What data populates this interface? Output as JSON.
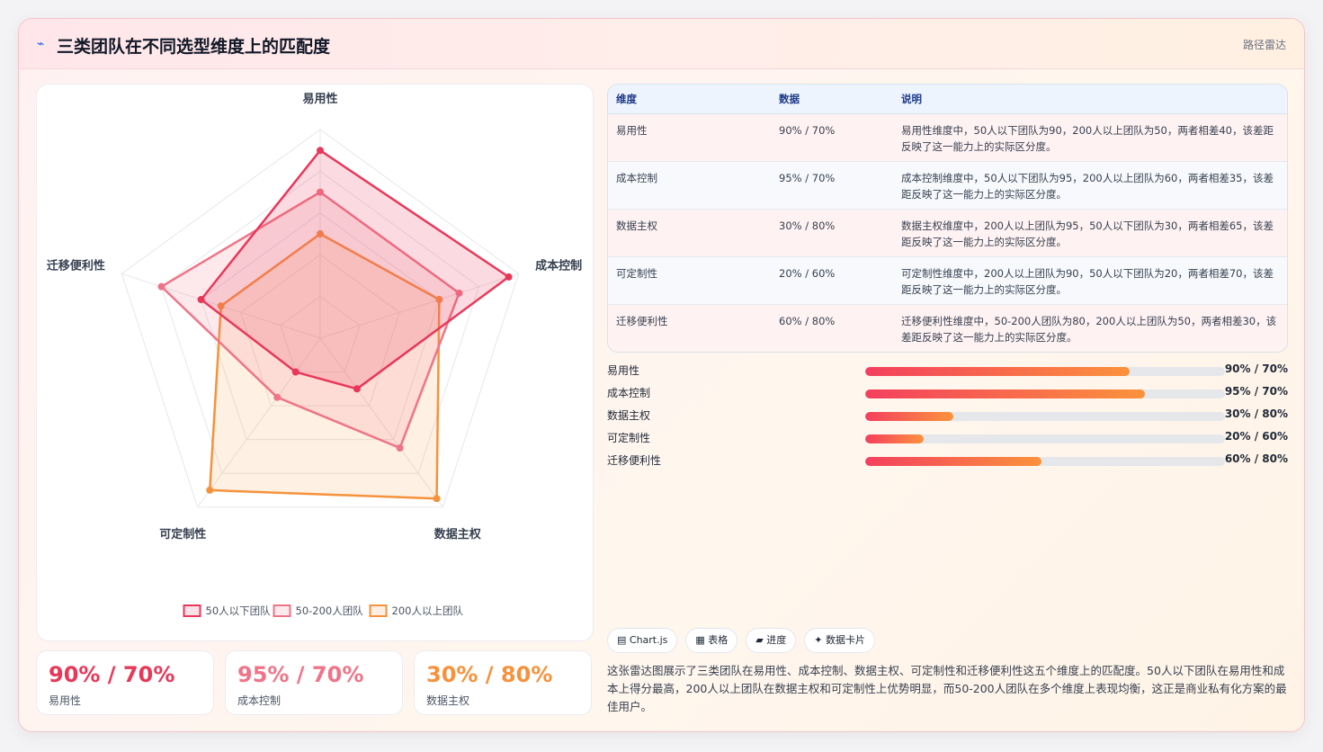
{
  "header": {
    "icon": "sparkle-icon",
    "title": "三类团队在不同选型维度上的匹配度",
    "tag": "路径雷达"
  },
  "chart_data": {
    "type": "radar",
    "axes": [
      "易用性",
      "成本控制",
      "数据主权",
      "可定制性",
      "迁移便利性"
    ],
    "rmax": 100,
    "grid_levels": [
      20,
      40,
      60,
      80,
      100
    ],
    "grid": true,
    "legend_position": "bottom",
    "series": [
      {
        "name": "50人以下团队",
        "values": [
          90,
          95,
          30,
          20,
          60
        ],
        "color": "#e8385a"
      },
      {
        "name": "50-200人团队",
        "values": [
          70,
          70,
          65,
          35,
          80
        ],
        "color": "#f07488"
      },
      {
        "name": "200人以上团队",
        "values": [
          50,
          60,
          95,
          90,
          50
        ],
        "color": "#f6923c"
      }
    ]
  },
  "stats": [
    {
      "value": "90% / 70%",
      "label": "易用性",
      "color": "#e8385a"
    },
    {
      "value": "95% / 70%",
      "label": "成本控制",
      "color": "#f07488"
    },
    {
      "value": "30% / 80%",
      "label": "数据主权",
      "color": "#f6923c"
    }
  ],
  "table": {
    "headers": [
      "维度",
      "数据",
      "说明"
    ],
    "rows": [
      [
        "易用性",
        "90% / 70%",
        "易用性维度中，50人以下团队为90，200人以上团队为50，两者相差40，该差距反映了这一能力上的实际区分度。"
      ],
      [
        "成本控制",
        "95% / 70%",
        "成本控制维度中，50人以下团队为95，200人以上团队为60，两者相差35，该差距反映了这一能力上的实际区分度。"
      ],
      [
        "数据主权",
        "30% / 80%",
        "数据主权维度中，200人以上团队为95，50人以下团队为30，两者相差65，该差距反映了这一能力上的实际区分度。"
      ],
      [
        "可定制性",
        "20% / 60%",
        "可定制性维度中，200人以上团队为90，50人以下团队为20，两者相差70，该差距反映了这一能力上的实际区分度。"
      ],
      [
        "迁移便利性",
        "60% / 80%",
        "迁移便利性维度中，50-200人团队为80，200人以上团队为50，两者相差30，该差距反映了这一能力上的实际区分度。"
      ]
    ]
  },
  "bars": [
    {
      "label": "易用性",
      "value": "90% / 70%",
      "fill": 0.735
    },
    {
      "label": "成本控制",
      "value": "95% / 70%",
      "fill": 0.778
    },
    {
      "label": "数据主权",
      "value": "30% / 80%",
      "fill": 0.245
    },
    {
      "label": "可定制性",
      "value": "20% / 60%",
      "fill": 0.163
    },
    {
      "label": "迁移便利性",
      "value": "60% / 80%",
      "fill": 0.49
    }
  ],
  "chips": [
    {
      "icon": "chart-icon",
      "label": "▤ Chart.js"
    },
    {
      "icon": "table-icon",
      "label": "▦ 表格"
    },
    {
      "icon": "progress-icon",
      "label": "▰ 进度"
    },
    {
      "icon": "card-icon",
      "label": "✦ 数据卡片"
    }
  ],
  "summary": "这张雷达图展示了三类团队在易用性、成本控制、数据主权、可定制性和迁移便利性这五个维度上的匹配度。50人以下团队在易用性和成本上得分最高，200人以上团队在数据主权和可定制性上优势明显，而50-200人团队在多个维度上表现均衡，这正是商业私有化方案的最佳用户。"
}
